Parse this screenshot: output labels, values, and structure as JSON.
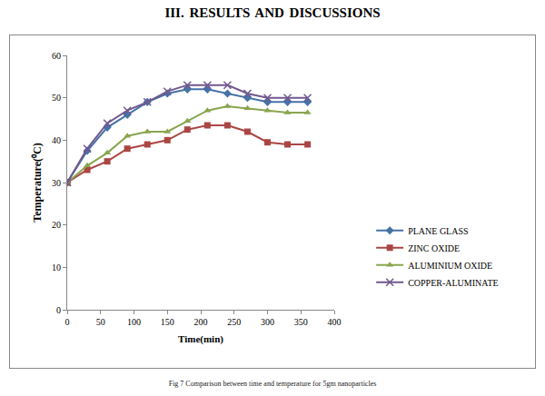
{
  "page": {
    "heading": "III. RESULTS AND DISCUSSIONS",
    "caption": "Fig 7 Comparison between time and temperature for 5gm nanoparticles"
  },
  "chart_data": {
    "type": "line",
    "x_label": "Time(min)",
    "y_label": "Temperature(⁰C)",
    "x": [
      0,
      30,
      60,
      90,
      120,
      150,
      180,
      210,
      240,
      270,
      300,
      330,
      360
    ],
    "series": [
      {
        "name": "PLANE GLASS",
        "color": "#4572A7",
        "marker": "diamond",
        "line_style": "solid",
        "values": [
          30,
          37.5,
          43,
          46,
          49,
          51,
          52,
          52,
          51,
          50,
          49,
          49,
          49
        ]
      },
      {
        "name": "ZINC OXIDE",
        "color": "#AA4643",
        "marker": "square",
        "line_style": "solid",
        "values": [
          30,
          33,
          35,
          38,
          39,
          40,
          42.5,
          43.5,
          43.5,
          42,
          39.5,
          39,
          39
        ]
      },
      {
        "name": "ALUMINIUM OXIDE",
        "color": "#89A54E",
        "marker": "triangle-up",
        "line_style": "solid",
        "values": [
          30,
          34,
          37,
          41,
          42,
          42,
          44.5,
          47,
          48,
          47.5,
          47,
          46.5,
          46.5
        ]
      },
      {
        "name": "COPPER-ALUMINATE",
        "color": "#71588F",
        "marker": "x",
        "line_style": "solid",
        "values": [
          30,
          38,
          44,
          47,
          49,
          51.5,
          53,
          53,
          53,
          51,
          50,
          50,
          50
        ]
      }
    ],
    "xlim": [
      0,
      400
    ],
    "xticks": [
      0,
      50,
      100,
      150,
      200,
      250,
      300,
      350,
      400
    ],
    "ylim": [
      0,
      60
    ],
    "yticks": [
      0,
      10,
      20,
      30,
      40,
      50,
      60
    ],
    "grid": false,
    "legend": "right"
  }
}
